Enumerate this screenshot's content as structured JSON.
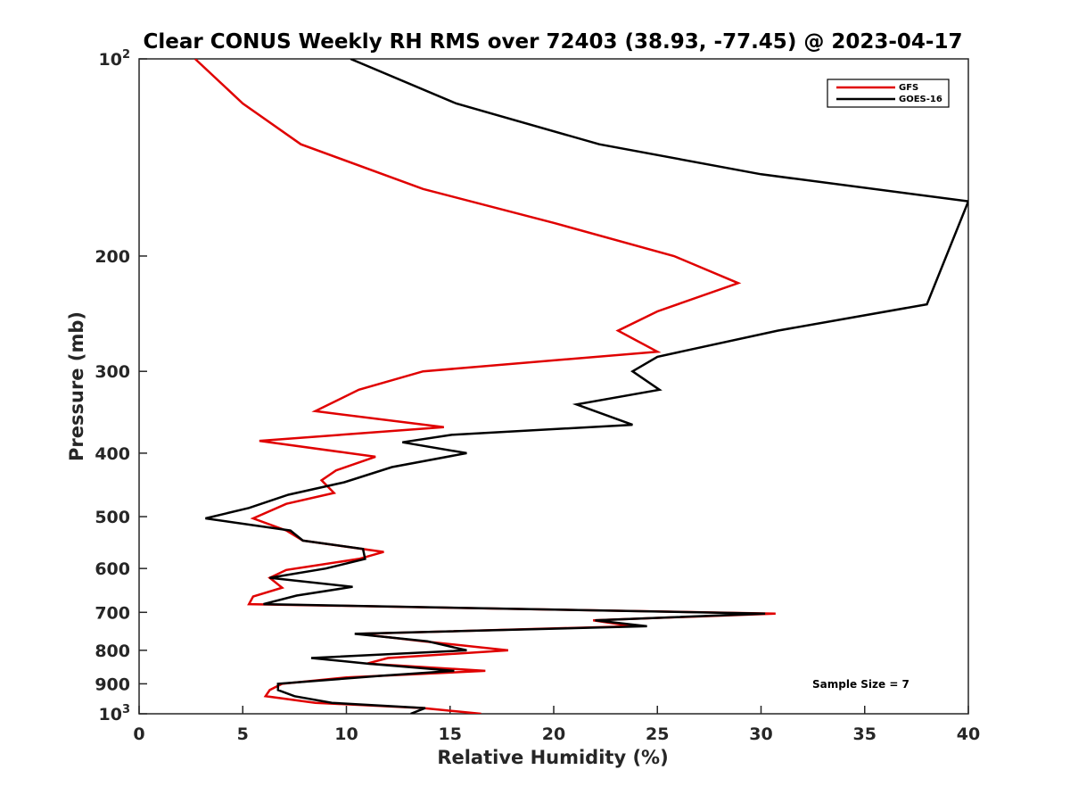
{
  "chart_data": {
    "type": "line",
    "title": "Clear CONUS Weekly RH RMS over 72403 (38.93, -77.45) @ 2023-04-17",
    "xlabel": "Relative Humidity (%)",
    "ylabel": "Pressure (mb)",
    "xlim": [
      0,
      40
    ],
    "ylim": [
      100,
      1000
    ],
    "y_scale": "log",
    "y_direction": "reverse",
    "grid": false,
    "legend_position": "top-right",
    "x_ticks": [
      "0",
      "5",
      "10",
      "15",
      "20",
      "25",
      "30",
      "35",
      "40"
    ],
    "y_ticks": [
      {
        "value": 100,
        "base": "10",
        "exp": "2"
      },
      {
        "value": 200,
        "label": "200"
      },
      {
        "value": 300,
        "label": "300"
      },
      {
        "value": 400,
        "label": "400"
      },
      {
        "value": 500,
        "label": "500"
      },
      {
        "value": 600,
        "label": "600"
      },
      {
        "value": 700,
        "label": "700"
      },
      {
        "value": 800,
        "label": "800"
      },
      {
        "value": 900,
        "label": "900"
      },
      {
        "value": 1000,
        "base": "10",
        "exp": "3"
      }
    ],
    "series": [
      {
        "name": "GFS",
        "color": "#e00000",
        "points": [
          [
            2.7,
            100
          ],
          [
            5.0,
            117
          ],
          [
            7.8,
            135
          ],
          [
            13.7,
            158
          ],
          [
            20.0,
            178
          ],
          [
            25.8,
            200
          ],
          [
            28.9,
            220
          ],
          [
            25.0,
            243
          ],
          [
            23.1,
            260
          ],
          [
            25.0,
            280
          ],
          [
            13.7,
            300
          ],
          [
            10.6,
            320
          ],
          [
            8.5,
            345
          ],
          [
            14.7,
            365
          ],
          [
            5.8,
            383
          ],
          [
            11.4,
            405
          ],
          [
            9.5,
            425
          ],
          [
            8.8,
            440
          ],
          [
            9.4,
            460
          ],
          [
            7.1,
            478
          ],
          [
            5.5,
            503
          ],
          [
            7.1,
            525
          ],
          [
            7.9,
            544
          ],
          [
            11.8,
            566
          ],
          [
            10.6,
            580
          ],
          [
            7.1,
            603
          ],
          [
            6.3,
            620
          ],
          [
            6.9,
            642
          ],
          [
            5.5,
            662
          ],
          [
            5.3,
            680
          ],
          [
            30.7,
            703
          ],
          [
            21.9,
            720
          ],
          [
            23.8,
            735
          ],
          [
            10.6,
            755
          ],
          [
            13.7,
            775
          ],
          [
            17.8,
            800
          ],
          [
            12.0,
            822
          ],
          [
            11.0,
            838
          ],
          [
            16.7,
            860
          ],
          [
            10.0,
            880
          ],
          [
            6.9,
            900
          ],
          [
            6.3,
            920
          ],
          [
            6.1,
            940
          ],
          [
            8.5,
            962
          ],
          [
            13.7,
            980
          ],
          [
            16.5,
            1000
          ]
        ]
      },
      {
        "name": "GOES-16",
        "color": "#000000",
        "points": [
          [
            10.2,
            100
          ],
          [
            15.3,
            117
          ],
          [
            22.2,
            135
          ],
          [
            30.0,
            150
          ],
          [
            40.0,
            165
          ],
          [
            38.0,
            237
          ],
          [
            30.8,
            260
          ],
          [
            25.0,
            285
          ],
          [
            23.8,
            300
          ],
          [
            25.1,
            320
          ],
          [
            21.1,
            337
          ],
          [
            23.8,
            362
          ],
          [
            15.1,
            375
          ],
          [
            12.7,
            385
          ],
          [
            15.8,
            400
          ],
          [
            12.2,
            420
          ],
          [
            9.9,
            443
          ],
          [
            7.2,
            463
          ],
          [
            5.3,
            485
          ],
          [
            3.2,
            503
          ],
          [
            7.3,
            525
          ],
          [
            7.9,
            544
          ],
          [
            10.8,
            560
          ],
          [
            10.9,
            580
          ],
          [
            9.0,
            600
          ],
          [
            6.3,
            620
          ],
          [
            10.3,
            640
          ],
          [
            7.6,
            660
          ],
          [
            6.0,
            680
          ],
          [
            30.2,
            703
          ],
          [
            22.0,
            720
          ],
          [
            24.5,
            735
          ],
          [
            10.4,
            755
          ],
          [
            13.9,
            775
          ],
          [
            15.8,
            800
          ],
          [
            8.3,
            822
          ],
          [
            11.0,
            838
          ],
          [
            15.2,
            860
          ],
          [
            11.7,
            875
          ],
          [
            6.7,
            900
          ],
          [
            6.7,
            920
          ],
          [
            7.5,
            940
          ],
          [
            9.3,
            962
          ],
          [
            13.8,
            980
          ],
          [
            13.1,
            1000
          ]
        ]
      }
    ],
    "annotation": "Sample Size = 7"
  }
}
